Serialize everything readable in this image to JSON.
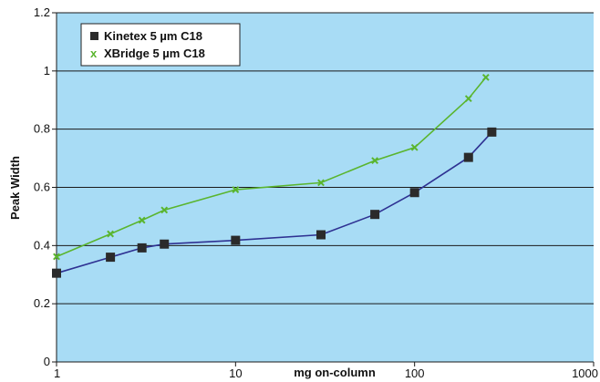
{
  "chart_data": {
    "type": "line",
    "title": "",
    "xlabel": "mg on-column",
    "ylabel": "Peak Width",
    "x_scale": "log",
    "xlim": [
      1,
      1000
    ],
    "ylim": [
      0,
      1.2
    ],
    "x_ticks": [
      "1",
      "10",
      "100",
      "1000"
    ],
    "y_ticks": [
      "0",
      "0.2",
      "0.4",
      "0.6",
      "0.8",
      "1",
      "1.2"
    ],
    "grid": "horizontal",
    "legend_position": "top-left",
    "background_color": "#a8dcf5",
    "series": [
      {
        "name": "Kinetex 5 µm C18",
        "marker": "square",
        "marker_color": "#2b2b2b",
        "line_color": "#2e3192",
        "x": [
          1,
          2,
          3,
          4,
          10,
          30,
          60,
          100,
          200,
          270
        ],
        "y": [
          0.305,
          0.36,
          0.392,
          0.405,
          0.418,
          0.437,
          0.507,
          0.582,
          0.703,
          0.79
        ]
      },
      {
        "name": "XBridge 5 µm C18",
        "marker": "x",
        "marker_color": "#5ab52e",
        "line_color": "#5ab52e",
        "x": [
          1,
          2,
          3,
          4,
          10,
          30,
          60,
          100,
          200,
          250
        ],
        "y": [
          0.362,
          0.44,
          0.487,
          0.522,
          0.592,
          0.616,
          0.692,
          0.737,
          0.905,
          0.978
        ]
      }
    ]
  }
}
